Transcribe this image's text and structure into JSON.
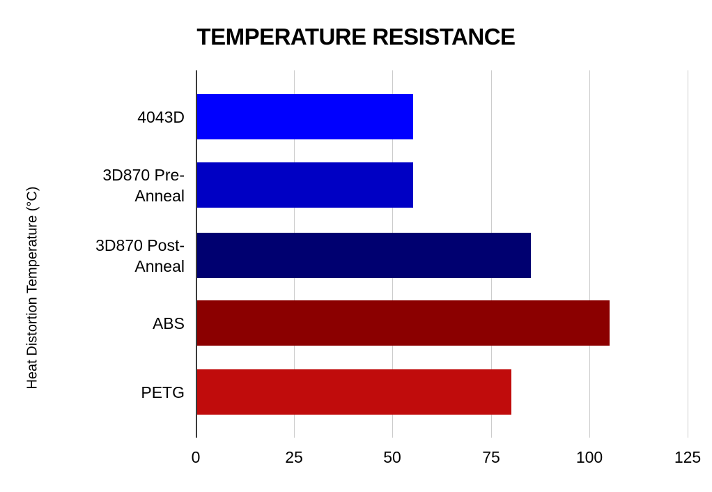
{
  "chart_data": {
    "type": "bar",
    "orientation": "horizontal",
    "title": "TEMPERATURE RESISTANCE",
    "ylabel": "Heat Distortion Temperature (°C)",
    "xlabel": "",
    "categories": [
      "4043D",
      "3D870 Pre-Anneal",
      "3D870 Post-Anneal",
      "ABS",
      "PETG"
    ],
    "values": [
      55,
      55,
      85,
      105,
      80
    ],
    "bar_colors": [
      "#0000FF",
      "#0000C4",
      "#000070",
      "#8B0000",
      "#C00C0C"
    ],
    "xlim": [
      0,
      125
    ],
    "x_ticks": [
      0,
      25,
      50,
      75,
      100,
      125
    ],
    "grid": true,
    "gridline_color": "#CCCCCC",
    "axis_line_color": "#3C3C3C",
    "text_color": "#000000",
    "background_color": "#FFFFFF",
    "legend": "none"
  }
}
